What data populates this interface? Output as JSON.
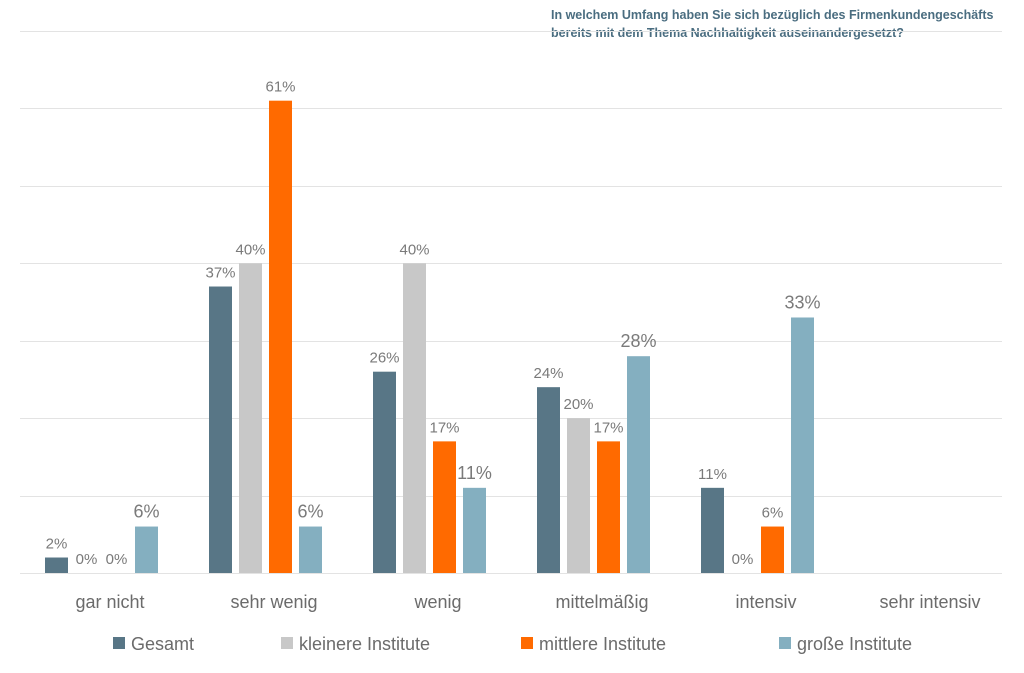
{
  "chart_data": {
    "type": "bar",
    "title_lines": [
      "In welchem Umfang haben Sie sich bezüglich des Firmenkundengeschäfts",
      "bereits mit dem Thema Nachhaltigkeit auseinandergesetzt?"
    ],
    "categories": [
      "gar nicht",
      "sehr wenig",
      "wenig",
      "mittelmäßig",
      "intensiv",
      "sehr intensiv"
    ],
    "series": [
      {
        "name": "Gesamt",
        "color": "#587686",
        "values": [
          2,
          37,
          26,
          24,
          11,
          null
        ]
      },
      {
        "name": "kleinere Institute",
        "color": "#c8c8c8",
        "values": [
          0,
          40,
          40,
          20,
          0,
          null
        ]
      },
      {
        "name": "mittlere Institute",
        "color": "#ff6a00",
        "values": [
          0,
          61,
          17,
          17,
          6,
          null
        ]
      },
      {
        "name": "große Institute",
        "color": "#84afc0",
        "values": [
          6,
          6,
          11,
          28,
          33,
          null
        ]
      }
    ],
    "value_suffix": "%",
    "ylim": [
      0,
      70
    ],
    "grid_step": 10,
    "grid": true,
    "y_axis_labels": false,
    "legend_position": "bottom"
  }
}
